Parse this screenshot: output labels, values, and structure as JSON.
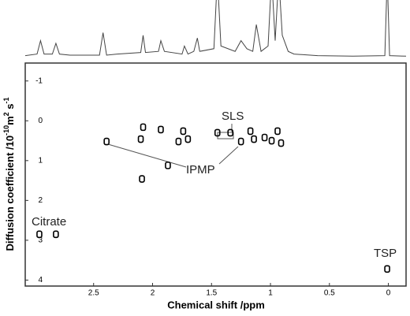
{
  "chart_data": {
    "type": "scatter",
    "x_label": "Chemical shift /ppm",
    "y_label": [
      {
        "text": "Diffusion coefficient /10"
      },
      {
        "sup": "-10"
      },
      {
        "text": "m"
      },
      {
        "sup": "2"
      },
      {
        "text": " s"
      },
      {
        "sup": "-1"
      }
    ],
    "xlim": [
      3.08,
      -0.15
    ],
    "ylim": [
      -1.45,
      4.15
    ],
    "xticks": [
      2.5,
      2,
      1.5,
      1,
      0.5,
      0
    ],
    "yticks": [
      -1,
      0,
      1,
      2,
      3,
      4
    ],
    "color": "#000000",
    "x": [
      2.96,
      2.82,
      2.39,
      2.1,
      2.08,
      2.09,
      1.93,
      1.87,
      1.78,
      1.74,
      1.7,
      1.45,
      1.34,
      1.25,
      1.17,
      1.14,
      1.05,
      0.99,
      0.94,
      0.91,
      0.01
    ],
    "values": [
      2.85,
      2.85,
      0.52,
      0.46,
      0.16,
      1.46,
      0.22,
      1.12,
      0.52,
      0.26,
      0.46,
      0.3,
      0.3,
      0.52,
      0.26,
      0.46,
      0.42,
      0.5,
      0.26,
      0.56,
      3.72
    ],
    "annotations": [
      "Citrate",
      "IPMP",
      "SLS",
      "TSP"
    ],
    "spectrum": {
      "x": [
        3.08,
        2.98,
        2.95,
        2.92,
        2.85,
        2.82,
        2.79,
        2.7,
        2.45,
        2.42,
        2.39,
        2.3,
        2.1,
        2.08,
        2.06,
        1.95,
        1.93,
        1.9,
        1.75,
        1.73,
        1.7,
        1.65,
        1.62,
        1.6,
        1.48,
        1.45,
        1.42,
        1.3,
        1.25,
        1.2,
        1.15,
        1.12,
        1.08,
        1.02,
        0.99,
        0.96,
        0.93,
        0.9,
        0.85,
        0.8,
        0.6,
        0.3,
        0.03,
        0.01,
        -0.01,
        -0.15
      ],
      "values": [
        0.02,
        0.05,
        0.3,
        0.05,
        0.05,
        0.25,
        0.05,
        0.03,
        0.03,
        0.45,
        0.03,
        0.05,
        0.08,
        0.4,
        0.08,
        0.1,
        0.3,
        0.1,
        0.05,
        0.2,
        0.05,
        0.1,
        0.35,
        0.1,
        0.15,
        1.5,
        0.2,
        0.1,
        0.3,
        0.15,
        0.1,
        0.6,
        0.1,
        0.2,
        1.5,
        0.3,
        1.5,
        0.4,
        0.1,
        0.05,
        0.02,
        0.01,
        0.02,
        1.5,
        0.02,
        0.01
      ]
    }
  }
}
